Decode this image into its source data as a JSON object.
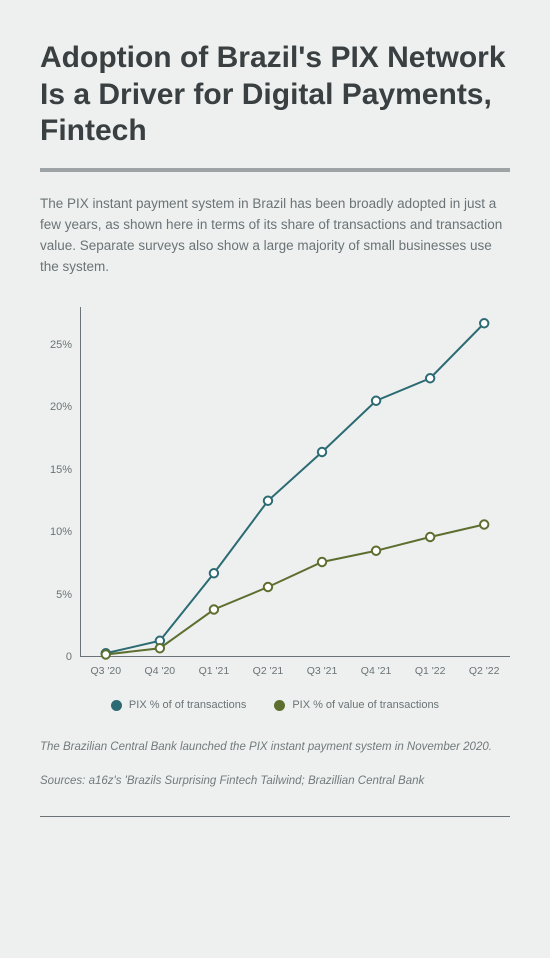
{
  "title": "Adoption of Brazil's PIX Network Is a Driver for Digital Payments, Fintech",
  "subtitle": "The PIX instant payment system in Brazil has been broadly adopted in just a few years, as shown here in terms of its share of transactions and transaction value. Separate surveys also show a large majority of small businesses use the system.",
  "chart": {
    "type": "line",
    "background_color": "#edf0ef",
    "axis_color": "#6b7376",
    "text_color": "#6b7376",
    "marker_fill": "#ffffff",
    "marker_radius": 4.2,
    "marker_stroke_width": 2,
    "line_width": 2,
    "label_fontsize": 11,
    "y": {
      "min": 0,
      "max": 28,
      "ticks": [
        0,
        5,
        10,
        15,
        20,
        25
      ],
      "tick_labels": [
        "0",
        "5%",
        "10%",
        "15%",
        "20%",
        "25%"
      ]
    },
    "x": {
      "categories": [
        "Q3 '20",
        "Q4 '20",
        "Q1 '21",
        "Q2 '21",
        "Q3 '21",
        "Q4 '21",
        "Q1 '22",
        "Q2 '22"
      ]
    },
    "series": [
      {
        "id": "pct_transactions",
        "label": "PIX % of of transactions",
        "color": "#2d6b74",
        "values": [
          0.3,
          1.3,
          6.7,
          12.5,
          16.4,
          20.5,
          22.3,
          26.7
        ]
      },
      {
        "id": "pct_value",
        "label": "PIX % of value of transactions",
        "color": "#5d6e2f",
        "values": [
          0.2,
          0.7,
          3.8,
          5.6,
          7.6,
          8.5,
          9.6,
          10.6
        ]
      }
    ]
  },
  "footnote1": "The Brazilian Central Bank launched the PIX instant payment system in November 2020.",
  "footnote2": "Sources: a16z's 'Brazils Surprising Fintech Tailwind; Brazillian Central Bank"
}
